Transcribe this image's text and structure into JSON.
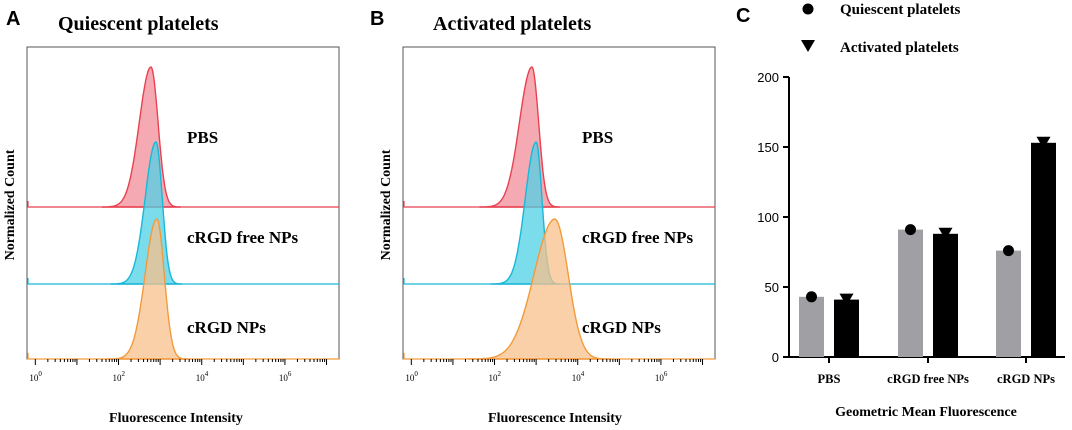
{
  "panels": {
    "a": {
      "letter": "A",
      "title": "Quiescent platelets",
      "ylabel": "Normalized Count",
      "xlabel": "Fluorescence Intensity",
      "tracks": [
        {
          "label": "PBS",
          "fill": "#f28e9a",
          "stroke": "#e8414f"
        },
        {
          "label": "cRGD free NPs",
          "fill": "#4fd0e6",
          "stroke": "#19b8d8"
        },
        {
          "label": "cRGD NPs",
          "fill": "#f8c08c",
          "stroke": "#f29a3c"
        }
      ]
    },
    "b": {
      "letter": "B",
      "title": "Activated platelets",
      "ylabel": "Normalized Count",
      "xlabel": "Fluorescence Intensity",
      "tracks": [
        {
          "label": "PBS",
          "fill": "#f28e9a",
          "stroke": "#e8414f"
        },
        {
          "label": "cRGD free NPs",
          "fill": "#4fd0e6",
          "stroke": "#19b8d8"
        },
        {
          "label": "cRGD NPs",
          "fill": "#f8c08c",
          "stroke": "#f29a3c"
        }
      ]
    },
    "c": {
      "letter": "C",
      "xlabel": "Geometric Mean Fluorescence",
      "legend": {
        "quiescent": "Quiescent platelets",
        "activated": "Activated platelets"
      }
    }
  },
  "xtick_labels": [
    {
      "base": "10",
      "exp": "0"
    },
    {
      "base": "10",
      "exp": "2"
    },
    {
      "base": "10",
      "exp": "4"
    },
    {
      "base": "10",
      "exp": "6"
    }
  ],
  "chart_data": [
    {
      "type": "area",
      "title": "Quiescent platelets",
      "xlabel": "Fluorescence Intensity",
      "ylabel": "Normalized Count",
      "x_scale": "log10",
      "xlim_log10": [
        -0.2,
        7.3
      ],
      "series": [
        {
          "name": "PBS",
          "peak_log10": 2.78,
          "width_left": 0.28,
          "width_right": 0.17
        },
        {
          "name": "cRGD free NPs",
          "peak_log10": 2.9,
          "width_left": 0.26,
          "width_right": 0.15
        },
        {
          "name": "cRGD NPs",
          "peak_log10": 2.92,
          "width_left": 0.28,
          "width_right": 0.18
        }
      ]
    },
    {
      "type": "area",
      "title": "Activated platelets",
      "xlabel": "Fluorescence Intensity",
      "ylabel": "Normalized Count",
      "x_scale": "log10",
      "xlim_log10": [
        -0.2,
        7.3
      ],
      "series": [
        {
          "name": "PBS",
          "peak_log10": 2.9,
          "width_left": 0.3,
          "width_right": 0.16
        },
        {
          "name": "cRGD free NPs",
          "peak_log10": 3.0,
          "width_left": 0.26,
          "width_right": 0.14
        },
        {
          "name": "cRGD NPs",
          "peak_log10": 3.45,
          "width_left": 0.5,
          "width_right": 0.32
        }
      ]
    },
    {
      "type": "bar",
      "title": "",
      "xlabel": "Geometric Mean Fluorescence",
      "ylabel": "",
      "categories": [
        "PBS",
        "cRGD free NPs",
        "cRGD NPs"
      ],
      "ylim": [
        0,
        200
      ],
      "yticks": [
        0,
        50,
        100,
        150,
        200
      ],
      "series": [
        {
          "name": "Quiescent platelets",
          "marker": "circle",
          "color": "#a0a0a4",
          "values": [
            43,
            91,
            76
          ]
        },
        {
          "name": "Activated platelets",
          "marker": "triangle-down",
          "color": "#000000",
          "values": [
            41,
            88,
            153
          ]
        }
      ]
    }
  ]
}
